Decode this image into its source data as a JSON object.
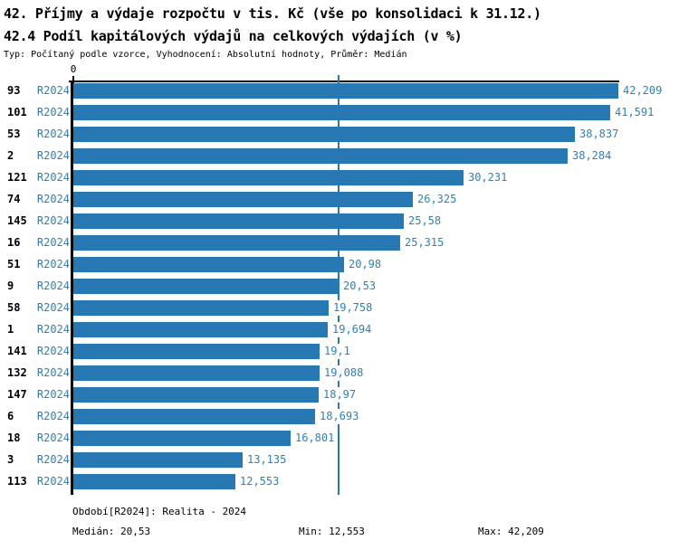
{
  "header": {
    "title_line1": "42. Příjmy a výdaje rozpočtu v tis. Kč (vše po konsolidaci k 31.12.)",
    "title_line2": "42.4 Podíl kapitálových výdajů na celkových výdajích (v %)",
    "subtitle": "Typ: Počítaný podle vzorce, Vyhodnocení: Absolutní hodnoty, Průměr: Medián"
  },
  "chart_data": {
    "type": "bar",
    "orientation": "horizontal",
    "title": "42.4 Podíl kapitálových výdajů na celkových výdajích (v %)",
    "xlabel": "",
    "ylabel": "",
    "xlim": [
      0,
      42.209
    ],
    "x_tick_labels": [
      "0"
    ],
    "grid": false,
    "legend_position": "none",
    "series_label": "R2024",
    "categories": [
      "93",
      "101",
      "53",
      "2",
      "121",
      "74",
      "145",
      "16",
      "51",
      "9",
      "58",
      "1",
      "141",
      "132",
      "147",
      "6",
      "18",
      "3",
      "113"
    ],
    "values": [
      42.209,
      41.591,
      38.837,
      38.284,
      30.231,
      26.325,
      25.58,
      25.315,
      20.98,
      20.53,
      19.758,
      19.694,
      19.1,
      19.088,
      18.97,
      18.693,
      16.801,
      13.135,
      12.553
    ],
    "value_labels": [
      "42,209",
      "41,591",
      "38,837",
      "38,284",
      "30,231",
      "26,325",
      "25,58",
      "25,315",
      "20,98",
      "20,53",
      "19,758",
      "19,694",
      "19,1",
      "19,088",
      "18,97",
      "18,693",
      "16,801",
      "13,135",
      "12,553"
    ],
    "median_value": 20.53,
    "annotations": {
      "median_line": true
    }
  },
  "footer": {
    "period": "Období[R2024]: Realita - 2024",
    "median": "Medián: 20,53",
    "min": "Min: 12,553",
    "max": "Max: 42,209"
  },
  "colors": {
    "bar": "#2878b4",
    "median_line": "#2878b4",
    "blue_text": "#2e80bc",
    "axis": "#000000"
  }
}
